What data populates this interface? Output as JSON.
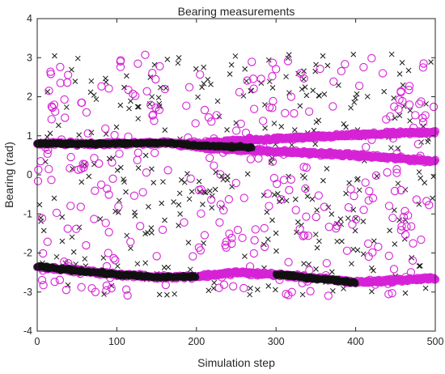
{
  "chart_data": {
    "type": "scatter",
    "title": "Bearing measurements",
    "xlabel": "Simulation step",
    "ylabel": "Bearing (rad)",
    "xlim": [
      0,
      500
    ],
    "ylim": [
      -4,
      4
    ],
    "xticks": [
      "0",
      "100",
      "200",
      "300",
      "400",
      "500"
    ],
    "yticks": [
      "4",
      "3",
      "2",
      "1",
      "0",
      "-1",
      "-2",
      "-3",
      "-4"
    ],
    "grid": false,
    "legend": "none",
    "colors": {
      "black": "#1a1a1a",
      "magenta": "#d622d6"
    },
    "series": [
      {
        "marker": "x",
        "color": "black",
        "tracks": [
          {
            "x": [
              0,
              100,
              160,
              200
            ],
            "y": [
              0.8,
              0.8,
              0.82,
              0.75
            ]
          },
          {
            "x": [
              200,
              270
            ],
            "y": [
              0.75,
              0.7
            ]
          },
          {
            "x": [
              0,
              100,
              150,
              200
            ],
            "y": [
              -2.35,
              -2.55,
              -2.62,
              -2.6
            ]
          },
          {
            "x": [
              300,
              400
            ],
            "y": [
              -2.55,
              -2.75
            ]
          }
        ],
        "clutter_count": 330,
        "clutter_xlim": [
          0,
          500
        ],
        "clutter_ylim": [
          -3.1,
          3.1
        ]
      },
      {
        "marker": "o",
        "color": "magenta",
        "tracks": [
          {
            "x": [
              0,
              100,
              160,
              200
            ],
            "y": [
              0.8,
              0.8,
              0.82,
              0.75
            ]
          },
          {
            "x": [
              180,
              300,
              400,
              500
            ],
            "y": [
              0.78,
              0.92,
              1.02,
              1.1
            ]
          },
          {
            "x": [
              200,
              300,
              400,
              500
            ],
            "y": [
              0.7,
              0.6,
              0.5,
              0.35
            ]
          },
          {
            "x": [
              0,
              100,
              150,
              200,
              250,
              300,
              400,
              500
            ],
            "y": [
              -2.35,
              -2.55,
              -2.62,
              -2.6,
              -2.5,
              -2.55,
              -2.75,
              -2.65
            ]
          }
        ],
        "clutter_count": 330,
        "clutter_xlim": [
          0,
          500
        ],
        "clutter_ylim": [
          -3.1,
          3.1
        ]
      }
    ]
  }
}
